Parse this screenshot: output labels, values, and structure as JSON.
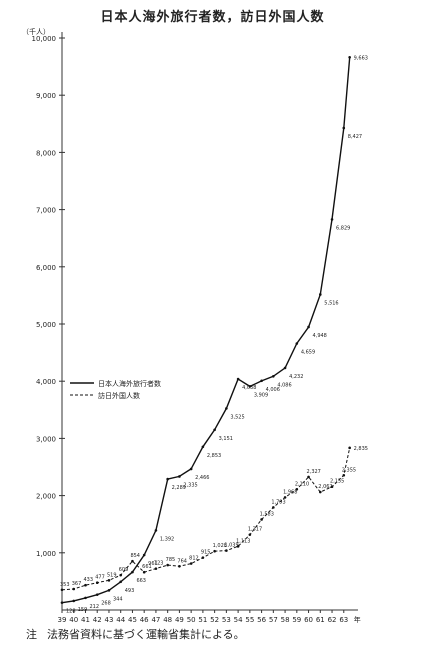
{
  "chart_data": {
    "type": "line",
    "title": "日本人海外旅行者数，訪日外国人数",
    "ylabel": "（千人）",
    "x_unit": "年",
    "ylim": [
      0,
      10000
    ],
    "yticks": [
      1000,
      2000,
      3000,
      4000,
      5000,
      6000,
      7000,
      8000,
      9000,
      10000
    ],
    "ytick_labels": [
      "1,000",
      "2,000",
      "3,000",
      "4,000",
      "5,000",
      "6,000",
      "7,000",
      "8,000",
      "9,000",
      "10,000"
    ],
    "x": [
      39,
      40,
      41,
      42,
      43,
      44,
      45,
      46,
      47,
      48,
      49,
      50,
      51,
      52,
      53,
      54,
      55,
      56,
      57,
      58,
      59,
      60,
      61,
      62,
      63
    ],
    "x_labels": [
      "39",
      "40",
      "41",
      "42",
      "43",
      "44",
      "45",
      "46",
      "47",
      "48",
      "49",
      "50",
      "51",
      "52",
      "53",
      "54",
      "55",
      "56",
      "57",
      "58",
      "59",
      "60",
      "61",
      "62",
      "63"
    ],
    "grid": false,
    "legend_position": "left-middle",
    "series": [
      {
        "name": "日本人海外旅行者数",
        "style": "solid",
        "values": [
          128,
          159,
          212,
          268,
          344,
          493,
          663,
          961,
          1392,
          2289,
          2335,
          2466,
          2853,
          3151,
          3525,
          4038,
          3909,
          4006,
          4086,
          4232,
          4659,
          4948,
          5516,
          6829,
          8427
        ],
        "labels": [
          "128",
          "159",
          "212",
          "268",
          "344",
          "493",
          "663",
          "961",
          "1,392",
          "2,289",
          "2,335",
          "2,466",
          "2,853",
          "3,151",
          "3,525",
          "4,038",
          "3,909",
          "4,006",
          "4,086",
          "4,232",
          "4,659",
          "4,948",
          "5,516",
          "6,829",
          "8,427"
        ]
      },
      {
        "name": "訪日外国人数",
        "style": "dashed",
        "values": [
          353,
          367,
          433,
          477,
          519,
          609,
          854,
          661,
          723,
          785,
          764,
          812,
          915,
          1028,
          1039,
          1113,
          1317,
          1583,
          1793,
          1968,
          2110,
          2327,
          2062,
          2155,
          2355
        ],
        "labels": [
          "353",
          "367",
          "433",
          "477",
          "519",
          "609",
          "854",
          "661",
          "723",
          "785",
          "764",
          "812",
          "915",
          "1,028",
          "1,039",
          "1,113",
          "1,317",
          "1,583",
          "1,793",
          "1,968",
          "2,110",
          "2,327",
          "2,062",
          "2,155",
          "2,355"
        ]
      }
    ],
    "extra_points": [
      {
        "series": 0,
        "x": 63.5,
        "value": 9663,
        "label": "9,663"
      },
      {
        "series": 1,
        "x": 63.5,
        "value": 2835,
        "label": "2,835"
      }
    ]
  },
  "note": {
    "mark": "注",
    "text": "法務省資料に基づく運輸省集計による。"
  }
}
